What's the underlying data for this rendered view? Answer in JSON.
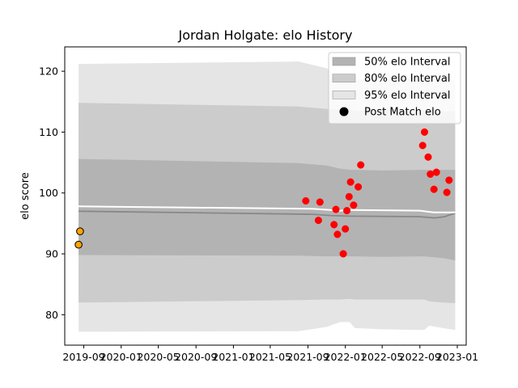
{
  "chart_data": {
    "type": "line",
    "title": "Jordan Holgate: elo History",
    "xlabel": "",
    "ylabel": "elo score",
    "ylim": [
      75,
      124
    ],
    "xlim": [
      "2019-07-01",
      "2023-01-30"
    ],
    "x_ticks": [
      "2019-09",
      "2020-01",
      "2020-05",
      "2020-09",
      "2021-01",
      "2021-05",
      "2021-09",
      "2022-01",
      "2022-05",
      "2022-09",
      "2023-01"
    ],
    "y_ticks": [
      80,
      90,
      100,
      110,
      120
    ],
    "grid": false,
    "legend_position": "top-right",
    "legend": [
      {
        "label": "50% elo Interval",
        "kind": "band",
        "color": "#b3b3b3"
      },
      {
        "label": "80% elo Interval",
        "kind": "band",
        "color": "#cccccc"
      },
      {
        "label": "95% elo Interval",
        "kind": "band",
        "color": "#e5e5e5"
      },
      {
        "label": "Post Match elo",
        "kind": "marker",
        "color": "#000000"
      }
    ],
    "bands": {
      "x": [
        "2019-08-15",
        "2021-08-01",
        "2021-11-01",
        "2021-12-15",
        "2022-01-15",
        "2022-02-01",
        "2022-05-01",
        "2022-09-15",
        "2022-10-01",
        "2022-11-15",
        "2022-12-25"
      ],
      "band95": {
        "upper": [
          121.2,
          121.6,
          120.5,
          118.8,
          118.8,
          118.6,
          118.7,
          119.0,
          118.8,
          118.6,
          118.6
        ],
        "lower": [
          77.2,
          77.3,
          78.0,
          78.8,
          78.8,
          77.8,
          77.6,
          77.5,
          78.2,
          77.8,
          77.5
        ]
      },
      "band80": {
        "upper": [
          114.8,
          114.2,
          113.8,
          113.7,
          113.9,
          113.5,
          113.6,
          113.6,
          113.4,
          113.4,
          113.4
        ],
        "lower": [
          82.0,
          82.4,
          82.5,
          82.5,
          82.6,
          82.5,
          82.5,
          82.5,
          82.2,
          82.0,
          81.9
        ]
      },
      "band50": {
        "upper": [
          105.6,
          104.9,
          104.5,
          104.0,
          103.8,
          103.8,
          103.7,
          103.8,
          103.8,
          103.8,
          103.8
        ],
        "lower": [
          89.8,
          89.7,
          89.6,
          89.6,
          89.6,
          89.6,
          89.5,
          89.6,
          89.5,
          89.3,
          88.9
        ]
      }
    },
    "median_line": {
      "x": [
        "2019-08-15",
        "2021-09-15",
        "2021-11-15",
        "2022-01-15",
        "2022-09-01",
        "2022-10-20",
        "2022-11-20",
        "2022-12-25"
      ],
      "y": [
        97.0,
        96.5,
        96.3,
        96.2,
        96.1,
        95.9,
        96.1,
        96.7
      ],
      "color": "#888888"
    },
    "mean_line": {
      "x": [
        "2019-08-15",
        "2021-09-15",
        "2021-12-15",
        "2022-01-15",
        "2022-09-01",
        "2022-10-15",
        "2022-12-25"
      ],
      "y": [
        97.8,
        97.4,
        97.1,
        97.2,
        97.1,
        96.8,
        96.8
      ],
      "color": "#ffffff"
    },
    "series": [
      {
        "name": "Post Match elo",
        "marker_color": "#ffa500",
        "edge_color": "#000000",
        "points": [
          {
            "x": "2019-08-15",
            "y": 91.5
          },
          {
            "x": "2019-08-20",
            "y": 93.7
          }
        ]
      },
      {
        "marker_color": "#ff0000",
        "edge_color": "#ff0000",
        "points": [
          {
            "x": "2021-08-25",
            "y": 98.7
          },
          {
            "x": "2021-10-05",
            "y": 95.5
          },
          {
            "x": "2021-10-10",
            "y": 98.5
          },
          {
            "x": "2021-11-25",
            "y": 94.8
          },
          {
            "x": "2021-12-01",
            "y": 97.3
          },
          {
            "x": "2021-12-06",
            "y": 93.2
          },
          {
            "x": "2021-12-25",
            "y": 90.0
          },
          {
            "x": "2022-01-01",
            "y": 94.1
          },
          {
            "x": "2022-01-06",
            "y": 97.1
          },
          {
            "x": "2022-01-13",
            "y": 99.4
          },
          {
            "x": "2022-01-18",
            "y": 101.8
          },
          {
            "x": "2022-01-28",
            "y": 98.0
          },
          {
            "x": "2022-02-12",
            "y": 101.0
          },
          {
            "x": "2022-02-20",
            "y": 104.6
          },
          {
            "x": "2022-09-10",
            "y": 107.8
          },
          {
            "x": "2022-09-16",
            "y": 110.0
          },
          {
            "x": "2022-09-28",
            "y": 105.9
          },
          {
            "x": "2022-10-05",
            "y": 103.1
          },
          {
            "x": "2022-10-17",
            "y": 100.6
          },
          {
            "x": "2022-10-25",
            "y": 103.4
          },
          {
            "x": "2022-11-28",
            "y": 100.1
          },
          {
            "x": "2022-12-05",
            "y": 102.1
          }
        ]
      }
    ]
  }
}
